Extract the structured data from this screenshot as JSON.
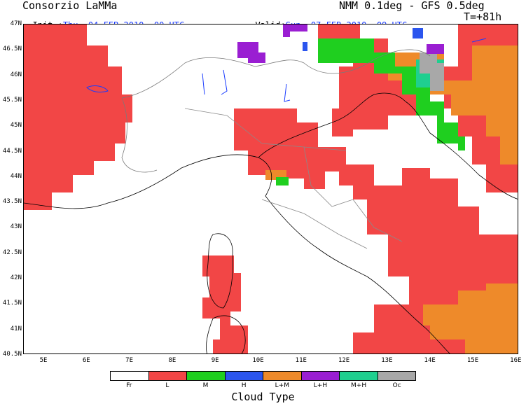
{
  "header": {
    "org": "Consorzio LaMMa",
    "model": "NMM 0.1deg - GFS 0.5deg",
    "init_label": "Init.:",
    "init_value": "Thu, 04 FEB 2010  00 UTC",
    "valid_label": "Valid:",
    "valid_value": "Sun, 07 FEB 2010  09 UTC",
    "lead": "T=+81h"
  },
  "axes": {
    "lat": [
      "47N",
      "46.5N",
      "46N",
      "45.5N",
      "45N",
      "44.5N",
      "44N",
      "43.5N",
      "43N",
      "42.5N",
      "42N",
      "41.5N",
      "41N",
      "40.5N"
    ],
    "lon": [
      "5E",
      "6E",
      "7E",
      "8E",
      "9E",
      "10E",
      "11E",
      "12E",
      "13E",
      "14E",
      "15E",
      "16E"
    ]
  },
  "legend": {
    "title": "Cloud Type",
    "items": [
      {
        "label": "Fr",
        "color": "#ffffff"
      },
      {
        "label": "L",
        "color": "#f24646"
      },
      {
        "label": "M",
        "color": "#1fcf1f"
      },
      {
        "label": "H",
        "color": "#2b55ee"
      },
      {
        "label": "L+M",
        "color": "#ee8a2a"
      },
      {
        "label": "L+H",
        "color": "#9a1ed2"
      },
      {
        "label": "M+H",
        "color": "#1fcf8f"
      },
      {
        "label": "Oc",
        "color": "#a8a8a8"
      }
    ]
  },
  "colors": {
    "low": "#f24646",
    "mid": "#1fcf1f",
    "high": "#2b55ee",
    "low_mid": "#ee8a2a",
    "low_high": "#9a1ed2",
    "mid_high": "#1fcf8f",
    "overcast": "#a8a8a8",
    "coast": "#000000",
    "lakes": "#1a3cff"
  }
}
